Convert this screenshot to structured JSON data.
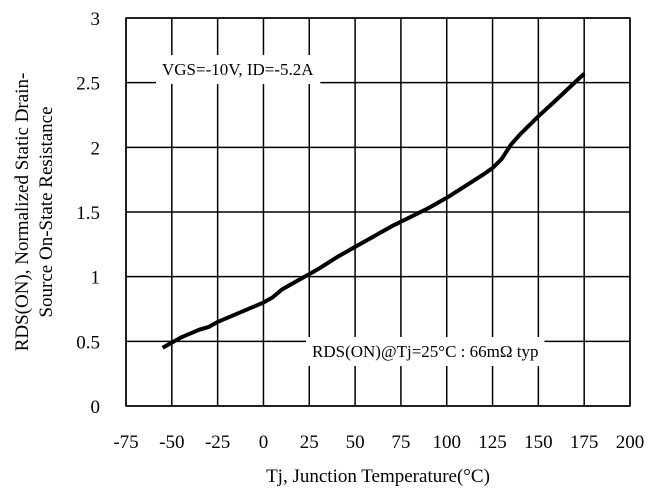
{
  "chart_data": {
    "type": "line",
    "xlabel": "Tj, Junction Temperature(°C)",
    "ylabel_line1": "RDS(ON), Normalized Static Drain-",
    "ylabel_line2": "Source On-State Resistance",
    "xlim": [
      -75,
      200
    ],
    "ylim": [
      0,
      3
    ],
    "xticks": [
      -75,
      -50,
      -25,
      0,
      25,
      50,
      75,
      100,
      125,
      150,
      175,
      200
    ],
    "xtick_labels": [
      "-75",
      "-50",
      "-25",
      "0",
      "25",
      "50",
      "75",
      "100",
      "125",
      "150",
      "175",
      "200"
    ],
    "yticks": [
      0,
      0.5,
      1,
      1.5,
      2,
      2.5,
      3
    ],
    "ytick_labels": [
      "0",
      "0.5",
      "1",
      "1.5",
      "2",
      "2.5",
      "3"
    ],
    "grid": true,
    "annotations": {
      "conditions": "VGS=-10V, ID=-5.2A",
      "reference": "RDS(ON)@Tj=25°C : 66mΩ typ"
    },
    "series": [
      {
        "x": [
          -55,
          -50,
          -45,
          -40,
          -35,
          -30,
          -25,
          -20,
          -15,
          -10,
          -5,
          0,
          5,
          10,
          15,
          20,
          25,
          30,
          40,
          50,
          60,
          70,
          80,
          90,
          100,
          110,
          120,
          125,
          130,
          135,
          140,
          150,
          160,
          175
        ],
        "values": [
          0.45,
          0.49,
          0.53,
          0.56,
          0.59,
          0.61,
          0.65,
          0.68,
          0.71,
          0.74,
          0.77,
          0.8,
          0.84,
          0.9,
          0.94,
          0.98,
          1.02,
          1.06,
          1.15,
          1.23,
          1.31,
          1.39,
          1.46,
          1.53,
          1.61,
          1.7,
          1.79,
          1.84,
          1.91,
          2.02,
          2.1,
          2.24,
          2.37,
          2.57
        ]
      }
    ]
  }
}
